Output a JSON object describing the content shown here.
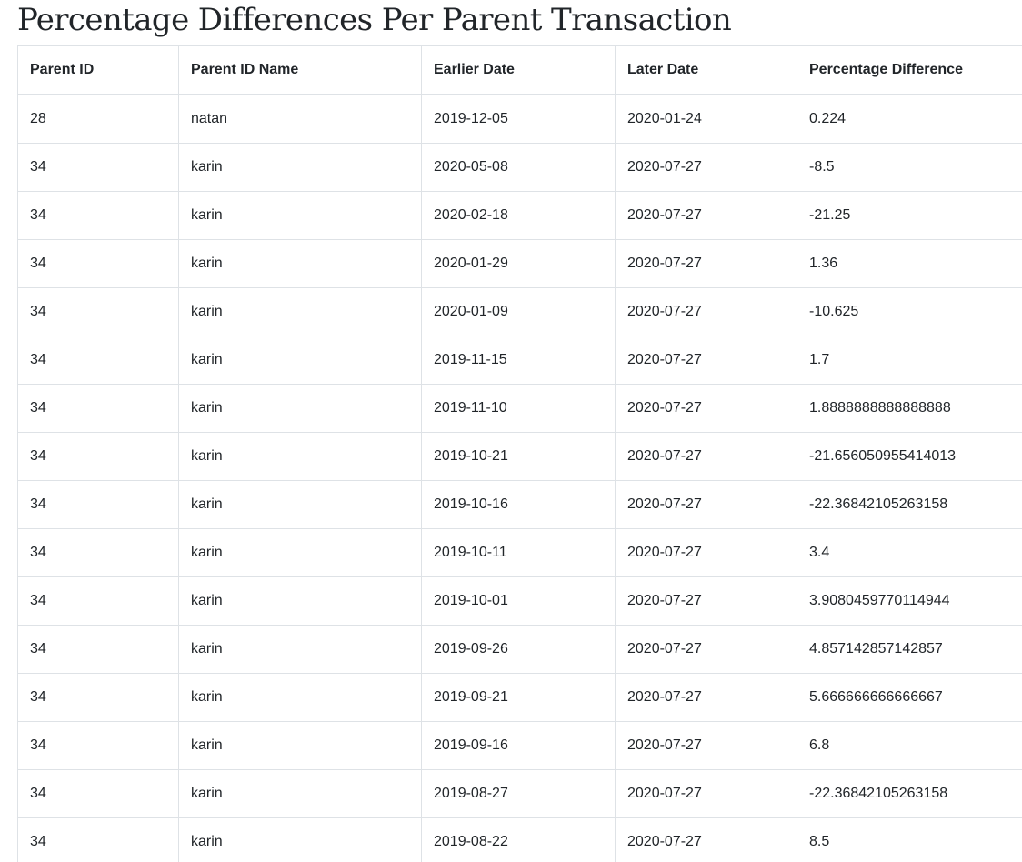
{
  "page": {
    "title": "Percentage Differences Per Parent Transaction"
  },
  "table": {
    "headers": [
      "Parent ID",
      "Parent ID Name",
      "Earlier Date",
      "Later Date",
      "Percentage Difference"
    ],
    "rows": [
      [
        "28",
        "natan",
        "2019-12-05",
        "2020-01-24",
        "0.224"
      ],
      [
        "34",
        "karin",
        "2020-05-08",
        "2020-07-27",
        "-8.5"
      ],
      [
        "34",
        "karin",
        "2020-02-18",
        "2020-07-27",
        "-21.25"
      ],
      [
        "34",
        "karin",
        "2020-01-29",
        "2020-07-27",
        "1.36"
      ],
      [
        "34",
        "karin",
        "2020-01-09",
        "2020-07-27",
        "-10.625"
      ],
      [
        "34",
        "karin",
        "2019-11-15",
        "2020-07-27",
        "1.7"
      ],
      [
        "34",
        "karin",
        "2019-11-10",
        "2020-07-27",
        "1.8888888888888888"
      ],
      [
        "34",
        "karin",
        "2019-10-21",
        "2020-07-27",
        "-21.656050955414013"
      ],
      [
        "34",
        "karin",
        "2019-10-16",
        "2020-07-27",
        "-22.36842105263158"
      ],
      [
        "34",
        "karin",
        "2019-10-11",
        "2020-07-27",
        "3.4"
      ],
      [
        "34",
        "karin",
        "2019-10-01",
        "2020-07-27",
        "3.9080459770114944"
      ],
      [
        "34",
        "karin",
        "2019-09-26",
        "2020-07-27",
        "4.857142857142857"
      ],
      [
        "34",
        "karin",
        "2019-09-21",
        "2020-07-27",
        "5.666666666666667"
      ],
      [
        "34",
        "karin",
        "2019-09-16",
        "2020-07-27",
        "6.8"
      ],
      [
        "34",
        "karin",
        "2019-08-27",
        "2020-07-27",
        "-22.36842105263158"
      ],
      [
        "34",
        "karin",
        "2019-08-22",
        "2020-07-27",
        "8.5"
      ]
    ]
  }
}
